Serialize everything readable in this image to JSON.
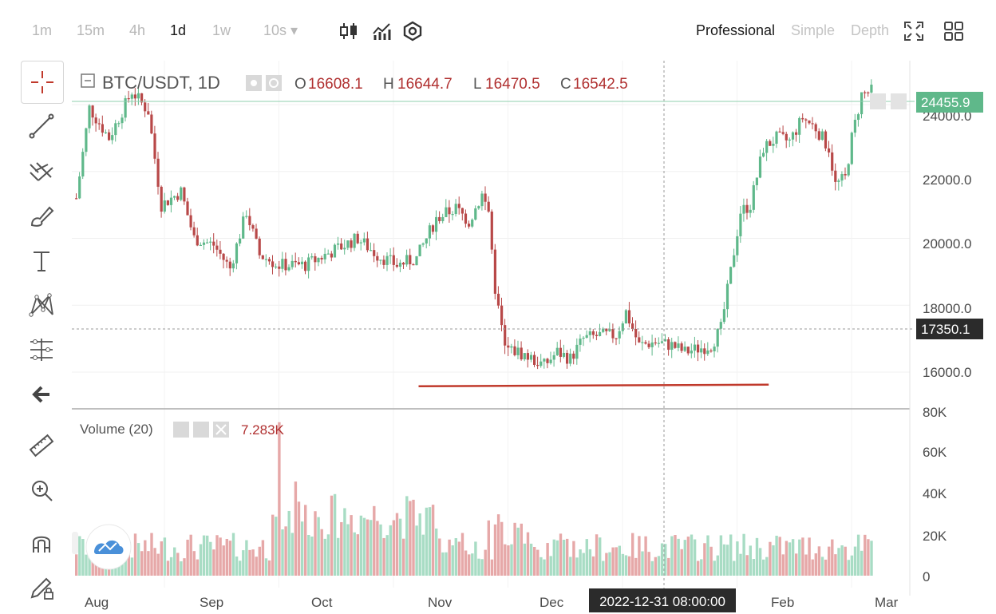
{
  "toolbar": {
    "timeframes": [
      "1m",
      "15m",
      "4h",
      "1d",
      "1w",
      "10s ▾"
    ],
    "active_timeframe": "1d",
    "modes": [
      "Professional",
      "Simple",
      "Depth"
    ],
    "active_mode": "Professional"
  },
  "legend": {
    "symbol": "BTC/USDT, 1D",
    "open_label": "O",
    "open": "16608.1",
    "high_label": "H",
    "high": "16644.7",
    "low_label": "L",
    "low": "16470.5",
    "close_label": "C",
    "close": "16542.5"
  },
  "volume_legend": {
    "title": "Volume (20)",
    "value": "7.283K"
  },
  "price_axis": {
    "ticks": [
      "24000.0",
      "22000.0",
      "20000.0",
      "18000.0",
      "16000.0"
    ]
  },
  "volume_axis": {
    "ticks": [
      "80K",
      "60K",
      "40K",
      "20K",
      "0"
    ]
  },
  "time_axis": {
    "labels": [
      "Aug",
      "Sep",
      "Oct",
      "Nov",
      "Dec",
      "Feb",
      "Mar"
    ]
  },
  "crosshair": {
    "date": "2022-12-31 08:00:00",
    "price": "17350.1"
  },
  "last_price": "24455.9",
  "colors": {
    "up": "#5fb88a",
    "down": "#b84848",
    "up_vol": "#a8dcc4",
    "down_vol": "#e6a8a8",
    "support_line": "#c0392b"
  },
  "chart_data": {
    "type": "candlestick",
    "symbol": "BTC/USDT",
    "interval": "1D",
    "y_range": [
      15000,
      25200
    ],
    "volume_range": [
      0,
      80000
    ],
    "months": [
      "Aug",
      "Sep",
      "Oct",
      "Nov",
      "Dec",
      "Feb",
      "Mar"
    ],
    "close_trend": [
      [
        0,
        21200
      ],
      [
        4,
        23900
      ],
      [
        10,
        23000
      ],
      [
        17,
        24400
      ],
      [
        22,
        23800
      ],
      [
        26,
        21000
      ],
      [
        32,
        21400
      ],
      [
        36,
        20000
      ],
      [
        42,
        19800
      ],
      [
        47,
        19100
      ],
      [
        52,
        20800
      ],
      [
        56,
        19500
      ],
      [
        62,
        19200
      ],
      [
        70,
        19200
      ],
      [
        78,
        19600
      ],
      [
        86,
        20000
      ],
      [
        92,
        19500
      ],
      [
        98,
        19200
      ],
      [
        104,
        19400
      ],
      [
        110,
        20600
      ],
      [
        116,
        20900
      ],
      [
        120,
        20500
      ],
      [
        124,
        21300
      ],
      [
        126,
        20800
      ],
      [
        128,
        18500
      ],
      [
        131,
        16700
      ],
      [
        135,
        16600
      ],
      [
        139,
        16400
      ],
      [
        143,
        16200
      ],
      [
        147,
        16600
      ],
      [
        151,
        16400
      ],
      [
        155,
        17000
      ],
      [
        160,
        17100
      ],
      [
        165,
        17100
      ],
      [
        168,
        17800
      ],
      [
        172,
        16800
      ],
      [
        177,
        16900
      ],
      [
        182,
        16800
      ],
      [
        186,
        16600
      ],
      [
        190,
        16700
      ],
      [
        194,
        16800
      ],
      [
        197,
        17300
      ],
      [
        200,
        19000
      ],
      [
        203,
        20800
      ],
      [
        206,
        21000
      ],
      [
        210,
        22700
      ],
      [
        214,
        23000
      ],
      [
        218,
        22900
      ],
      [
        222,
        23600
      ],
      [
        226,
        23300
      ],
      [
        230,
        22700
      ],
      [
        232,
        21600
      ],
      [
        235,
        21800
      ],
      [
        237,
        23000
      ],
      [
        240,
        24300
      ],
      [
        243,
        24400
      ]
    ],
    "volume_spikes": [
      [
        62,
        75000
      ],
      [
        67,
        46000
      ],
      [
        129,
        30000
      ],
      [
        126,
        27000
      ],
      [
        150,
        18000
      ]
    ],
    "support_line": {
      "from_day": 105,
      "to_day": 212,
      "price": 15600
    }
  }
}
